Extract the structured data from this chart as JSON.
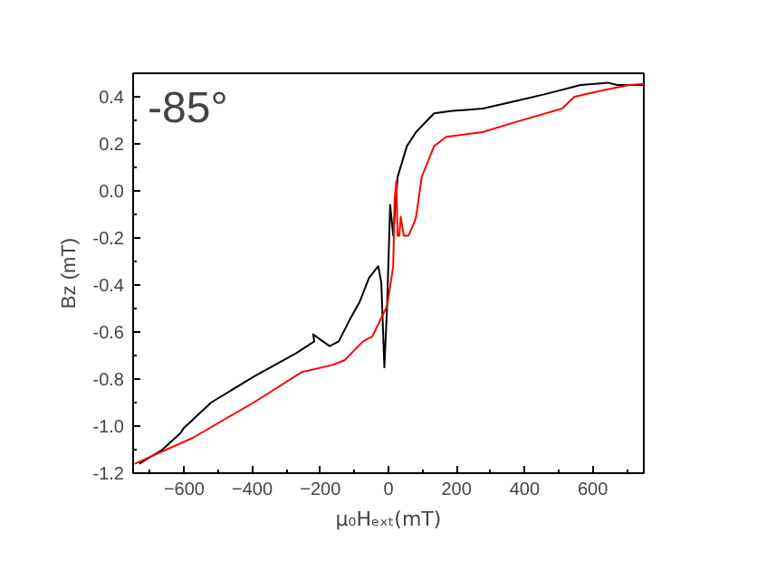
{
  "chart_data": {
    "type": "line",
    "xlabel": "μ₀Hₑₓₜ(mT)",
    "ylabel": "Bz (mT)",
    "annotations": [
      "-85°"
    ],
    "xlim": [
      -750,
      750
    ],
    "ylim": [
      -1.2,
      0.5
    ],
    "xticks": [
      -600,
      -400,
      -200,
      0,
      200,
      400,
      600
    ],
    "yticks": [
      {
        "value": -1.2,
        "label": "-1.2"
      },
      {
        "value": -1.0,
        "label": "-1.0"
      },
      {
        "value": -0.8,
        "label": "-0.8"
      },
      {
        "value": -0.6,
        "label": "-0.6"
      },
      {
        "value": -0.4,
        "label": "-0.4"
      },
      {
        "value": -0.2,
        "label": "-0.2"
      },
      {
        "value": 0,
        "label": "0.0"
      },
      {
        "value": 0.2,
        "label": "0.2"
      },
      {
        "value": 0.4,
        "label": "0.4"
      }
    ],
    "grid": false,
    "marker": "none",
    "line_style": "solid",
    "series": [
      {
        "color": "#000000",
        "x": [
          -732,
          -664,
          -611,
          -602,
          -521,
          -396,
          -271,
          -218,
          -221,
          -173,
          -146,
          -111,
          -84,
          -57,
          -30,
          -21,
          -12,
          -4,
          5,
          14,
          27,
          54,
          81,
          134,
          188,
          277,
          367,
          457,
          564,
          645,
          672,
          750
        ],
        "values": [
          -1.16,
          -1.1,
          -1.03,
          -1.01,
          -0.9,
          -0.79,
          -0.69,
          -0.64,
          -0.61,
          -0.66,
          -0.64,
          -0.54,
          -0.47,
          -0.37,
          -0.32,
          -0.39,
          -0.75,
          -0.49,
          -0.06,
          -0.19,
          0.06,
          0.19,
          0.25,
          0.33,
          0.34,
          0.35,
          0.38,
          0.41,
          0.45,
          0.46,
          0.45,
          0.45
        ]
      },
      {
        "color": "#ff0000",
        "x": [
          -745,
          -575,
          -396,
          -254,
          -164,
          -129,
          -75,
          -48,
          -21,
          -4,
          14,
          18,
          23,
          27,
          32,
          36,
          45,
          59,
          77,
          81,
          98,
          134,
          170,
          277,
          367,
          510,
          546,
          636,
          707,
          750
        ],
        "values": [
          -1.16,
          -1.05,
          -0.9,
          -0.77,
          -0.74,
          -0.72,
          -0.64,
          -0.62,
          -0.54,
          -0.49,
          -0.32,
          -0.04,
          0.04,
          -0.19,
          -0.19,
          -0.11,
          -0.19,
          -0.19,
          -0.13,
          -0.11,
          0.06,
          0.19,
          0.23,
          0.25,
          0.29,
          0.35,
          0.4,
          0.43,
          0.45,
          0.455
        ]
      }
    ]
  }
}
